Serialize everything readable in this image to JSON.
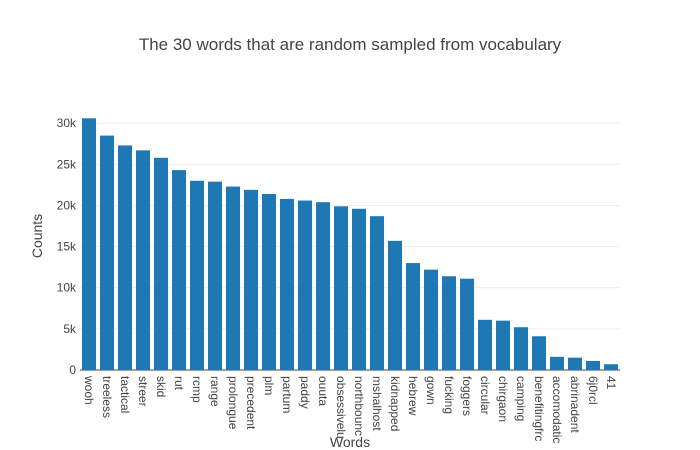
{
  "chart_data": {
    "type": "bar",
    "title": "The 30 words that are random sampled from vocabulary",
    "xlabel": "Words",
    "ylabel": "Counts",
    "ylim": [
      0,
      31000
    ],
    "yticks": [
      0,
      5000,
      10000,
      15000,
      20000,
      25000,
      30000
    ],
    "ytick_labels": [
      "0",
      "5k",
      "10k",
      "15k",
      "20k",
      "25k",
      "30k"
    ],
    "grid": true,
    "bar_color": "#1f77b4",
    "categories": [
      "wooh",
      "treeless",
      "tactical",
      "streer",
      "skid",
      "rut",
      "rcmp",
      "range",
      "prolongue",
      "precedent",
      "plm",
      "partum",
      "paddy",
      "ouuta",
      "obsessivelu",
      "northbounc",
      "mshalhost",
      "kidnapped",
      "hebrew",
      "gown",
      "fucking",
      "foggers",
      "circular",
      "chirgaon",
      "camping",
      "benefitingfrc",
      "accomodatic",
      "abrinadent",
      "6j0rcl",
      "41"
    ],
    "values": [
      30600,
      28500,
      27300,
      26700,
      25800,
      24300,
      23000,
      22900,
      22300,
      21900,
      21400,
      20800,
      20600,
      20400,
      19900,
      19600,
      18700,
      15700,
      13000,
      12200,
      11400,
      11100,
      6100,
      6000,
      5200,
      4100,
      1600,
      1500,
      1100,
      700
    ]
  }
}
